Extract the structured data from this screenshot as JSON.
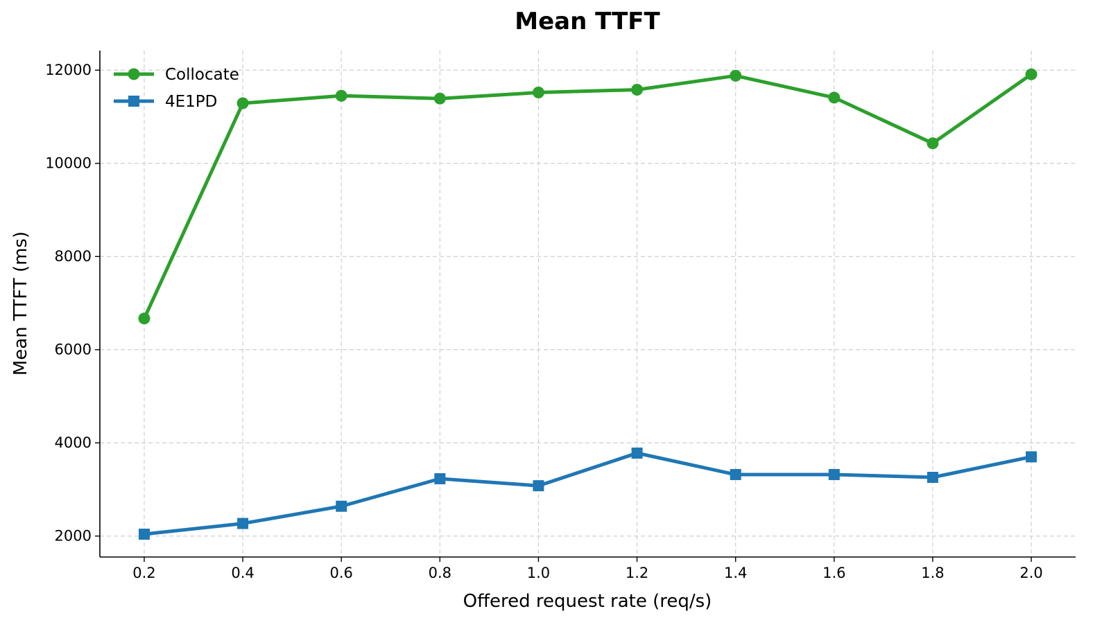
{
  "chart_data": {
    "type": "line",
    "title": "Mean TTFT",
    "xlabel": "Offered request rate (req/s)",
    "ylabel": "Mean TTFT (ms)",
    "x": [
      0.2,
      0.4,
      0.6,
      0.8,
      1.0,
      1.2,
      1.4,
      1.6,
      1.8,
      2.0
    ],
    "x_ticks": [
      "0.2",
      "0.4",
      "0.6",
      "0.8",
      "1.0",
      "1.2",
      "1.4",
      "1.6",
      "1.8",
      "2.0"
    ],
    "y_ticks": [
      2000,
      4000,
      6000,
      8000,
      10000,
      12000
    ],
    "xlim": [
      0.11,
      2.09
    ],
    "ylim": [
      1550,
      12420
    ],
    "grid": true,
    "legend_position": "top-left",
    "series": [
      {
        "name": "Collocate",
        "color": "#2ca02c",
        "marker": "circle",
        "values": [
          6670,
          11290,
          11450,
          11390,
          11520,
          11580,
          11880,
          11410,
          10430,
          11910
        ]
      },
      {
        "name": "4E1PD",
        "color": "#1f77b4",
        "marker": "square",
        "values": [
          2040,
          2270,
          2640,
          3230,
          3080,
          3780,
          3320,
          3320,
          3260,
          3700
        ]
      }
    ]
  }
}
